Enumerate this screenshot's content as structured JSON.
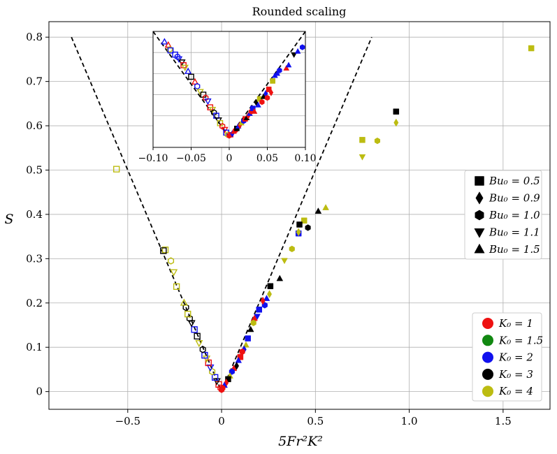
{
  "chart_data": {
    "type": "scatter",
    "title": "Rounded scaling",
    "xlabel": "5Fr²K²",
    "ylabel": "S",
    "xlim": [
      -0.92,
      1.75
    ],
    "ylim": [
      -0.04,
      0.835
    ],
    "xticks": [
      -0.5,
      0,
      0.5,
      1.0,
      1.5
    ],
    "xtick_labels": [
      "−0.5",
      "0",
      "0.5",
      "1.0",
      "1.5"
    ],
    "yticks": [
      0,
      0.1,
      0.2,
      0.3,
      0.4,
      0.5,
      0.6,
      0.7,
      0.8
    ],
    "ytick_labels": [
      "0",
      "0.1",
      "0.2",
      "0.3",
      "0.4",
      "0.5",
      "0.6",
      "0.7",
      "0.8"
    ],
    "grid": true,
    "reference_lines": [
      {
        "style": "dashed",
        "color": "#000000",
        "points": [
          [
            -0.8,
            0.8
          ],
          [
            0,
            0
          ],
          [
            0.8,
            0.8
          ]
        ]
      }
    ],
    "legend_bu": {
      "placement": "right",
      "entries": [
        {
          "label": "Bu₀ = 0.5",
          "marker": "square"
        },
        {
          "label": "Bu₀ = 0.9",
          "marker": "diamond"
        },
        {
          "label": "Bu₀ = 1.0",
          "marker": "hexagon"
        },
        {
          "label": "Bu₀ = 1.1",
          "marker": "triangle-down"
        },
        {
          "label": "Bu₀ = 1.5",
          "marker": "triangle-up"
        }
      ]
    },
    "legend_k": {
      "placement": "lower-right",
      "entries": [
        {
          "label": "K₀ = 1",
          "color": "#ee1111"
        },
        {
          "label": "K₀ = 1.5",
          "color": "#118811"
        },
        {
          "label": "K₀ = 2",
          "color": "#1111ee"
        },
        {
          "label": "K₀ = 3",
          "color": "#000000"
        },
        {
          "label": "K₀ = 4",
          "color": "#bcbc11"
        }
      ]
    },
    "inset": {
      "xlim": [
        -0.1,
        0.1
      ],
      "ylim": [
        -0.01,
        0.1
      ],
      "xticks": [
        -0.1,
        -0.05,
        0,
        0.05,
        0.1
      ],
      "xtick_labels": [
        "−0.10",
        "−0.05",
        "0",
        "0.05",
        "0.10"
      ],
      "grid": true
    },
    "points": [
      {
        "x": 1.65,
        "y": 0.775,
        "marker": "square",
        "k": 4,
        "filled": true
      },
      {
        "x": 0.93,
        "y": 0.632,
        "marker": "square",
        "k": 3,
        "filled": true
      },
      {
        "x": 0.93,
        "y": 0.607,
        "marker": "diamond",
        "k": 4,
        "filled": true
      },
      {
        "x": 0.83,
        "y": 0.566,
        "marker": "hexagon",
        "k": 4,
        "filled": true
      },
      {
        "x": 0.75,
        "y": 0.568,
        "marker": "square",
        "k": 4,
        "filled": true
      },
      {
        "x": 0.75,
        "y": 0.53,
        "marker": "triangle-down",
        "k": 4,
        "filled": true
      },
      {
        "x": 0.555,
        "y": 0.415,
        "marker": "triangle-up",
        "k": 4,
        "filled": true
      },
      {
        "x": 0.515,
        "y": 0.407,
        "marker": "triangle-up",
        "k": 3,
        "filled": true
      },
      {
        "x": 0.46,
        "y": 0.37,
        "marker": "hexagon",
        "k": 3,
        "filled": true
      },
      {
        "x": 0.44,
        "y": 0.386,
        "marker": "square",
        "k": 4,
        "filled": true
      },
      {
        "x": 0.415,
        "y": 0.377,
        "marker": "square",
        "k": 3,
        "filled": true
      },
      {
        "x": 0.41,
        "y": 0.357,
        "marker": "square",
        "k": 2,
        "filled": true
      },
      {
        "x": 0.41,
        "y": 0.36,
        "marker": "diamond",
        "k": 4,
        "filled": true
      },
      {
        "x": 0.375,
        "y": 0.322,
        "marker": "hexagon",
        "k": 4,
        "filled": true
      },
      {
        "x": 0.335,
        "y": 0.296,
        "marker": "triangle-down",
        "k": 4,
        "filled": true
      },
      {
        "x": 0.31,
        "y": 0.255,
        "marker": "triangle-up",
        "k": 3,
        "filled": true
      },
      {
        "x": 0.26,
        "y": 0.238,
        "marker": "square",
        "k": 3,
        "filled": true
      },
      {
        "x": 0.255,
        "y": 0.22,
        "marker": "diamond",
        "k": 4,
        "filled": true
      },
      {
        "x": 0.24,
        "y": 0.21,
        "marker": "triangle-up",
        "k": 2,
        "filled": true
      },
      {
        "x": 0.23,
        "y": 0.195,
        "marker": "hexagon",
        "k": 2,
        "filled": true
      },
      {
        "x": 0.22,
        "y": 0.205,
        "marker": "diamond",
        "k": 1,
        "filled": true
      },
      {
        "x": 0.2,
        "y": 0.185,
        "marker": "square",
        "k": 2,
        "filled": true
      },
      {
        "x": 0.19,
        "y": 0.17,
        "marker": "triangle-down",
        "k": 2,
        "filled": true
      },
      {
        "x": 0.175,
        "y": 0.165,
        "marker": "triangle-up",
        "k": 1,
        "filled": true
      },
      {
        "x": 0.17,
        "y": 0.155,
        "marker": "hexagon",
        "k": 4,
        "filled": true
      },
      {
        "x": 0.155,
        "y": 0.14,
        "marker": "triangle-up",
        "k": 3,
        "filled": true
      },
      {
        "x": 0.14,
        "y": 0.12,
        "marker": "square",
        "k": 2,
        "filled": true
      },
      {
        "x": 0.13,
        "y": 0.105,
        "marker": "triangle-up",
        "k": 4,
        "filled": true
      },
      {
        "x": 0.12,
        "y": 0.095,
        "marker": "diamond",
        "k": 2,
        "filled": true
      },
      {
        "x": 0.11,
        "y": 0.09,
        "marker": "hexagon",
        "k": 1,
        "filled": true
      },
      {
        "x": 0.1,
        "y": 0.078,
        "marker": "square",
        "k": 1,
        "filled": true
      },
      {
        "x": 0.09,
        "y": 0.07,
        "marker": "triangle-up",
        "k": 2,
        "filled": true
      },
      {
        "x": 0.08,
        "y": 0.058,
        "marker": "diamond",
        "k": 3,
        "filled": true
      },
      {
        "x": 0.065,
        "y": 0.052,
        "marker": "triangle-up",
        "k": 1,
        "filled": true
      },
      {
        "x": 0.055,
        "y": 0.045,
        "marker": "hexagon",
        "k": 2,
        "filled": true
      },
      {
        "x": 0.045,
        "y": 0.035,
        "marker": "triangle-up",
        "k": 4,
        "filled": true
      },
      {
        "x": 0.035,
        "y": 0.028,
        "marker": "square",
        "k": 3,
        "filled": true
      },
      {
        "x": 0.025,
        "y": 0.02,
        "marker": "diamond",
        "k": 1,
        "filled": true
      },
      {
        "x": 0.015,
        "y": 0.014,
        "marker": "triangle-up",
        "k": 2,
        "filled": true
      },
      {
        "x": 0.005,
        "y": 0.008,
        "marker": "hexagon",
        "k": 1,
        "filled": true
      },
      {
        "x": 0.0,
        "y": 0.004,
        "marker": "hexagon",
        "k": 1,
        "filled": true
      },
      {
        "x": -0.005,
        "y": 0.008,
        "marker": "hexagon",
        "k": 1,
        "filled": false
      },
      {
        "x": -0.015,
        "y": 0.016,
        "marker": "square",
        "k": 1,
        "filled": false
      },
      {
        "x": -0.025,
        "y": 0.024,
        "marker": "triangle-down",
        "k": 3,
        "filled": false
      },
      {
        "x": -0.035,
        "y": 0.032,
        "marker": "square",
        "k": 2,
        "filled": false
      },
      {
        "x": -0.05,
        "y": 0.045,
        "marker": "hexagon",
        "k": 4,
        "filled": false
      },
      {
        "x": -0.06,
        "y": 0.055,
        "marker": "triangle-down",
        "k": 2,
        "filled": false
      },
      {
        "x": -0.07,
        "y": 0.065,
        "marker": "square",
        "k": 1,
        "filled": false
      },
      {
        "x": -0.08,
        "y": 0.075,
        "marker": "triangle-down",
        "k": 4,
        "filled": false
      },
      {
        "x": -0.09,
        "y": 0.082,
        "marker": "square",
        "k": 2,
        "filled": false
      },
      {
        "x": -0.1,
        "y": 0.095,
        "marker": "hexagon",
        "k": 3,
        "filled": false
      },
      {
        "x": -0.12,
        "y": 0.11,
        "marker": "triangle-down",
        "k": 4,
        "filled": false
      },
      {
        "x": -0.13,
        "y": 0.125,
        "marker": "square",
        "k": 3,
        "filled": false
      },
      {
        "x": -0.145,
        "y": 0.14,
        "marker": "square",
        "k": 2,
        "filled": false
      },
      {
        "x": -0.16,
        "y": 0.155,
        "marker": "triangle-down",
        "k": 3,
        "filled": false
      },
      {
        "x": -0.17,
        "y": 0.165,
        "marker": "hexagon",
        "k": 3,
        "filled": false
      },
      {
        "x": -0.18,
        "y": 0.175,
        "marker": "square",
        "k": 4,
        "filled": false
      },
      {
        "x": -0.19,
        "y": 0.19,
        "marker": "hexagon",
        "k": 3,
        "filled": false
      },
      {
        "x": -0.2,
        "y": 0.2,
        "marker": "triangle-up",
        "k": 4,
        "filled": false
      },
      {
        "x": -0.24,
        "y": 0.237,
        "marker": "square",
        "k": 4,
        "filled": false
      },
      {
        "x": -0.255,
        "y": 0.27,
        "marker": "triangle-down",
        "k": 4,
        "filled": false
      },
      {
        "x": -0.27,
        "y": 0.295,
        "marker": "hexagon",
        "k": 4,
        "filled": false
      },
      {
        "x": -0.3,
        "y": 0.32,
        "marker": "square",
        "k": 4,
        "filled": false
      },
      {
        "x": -0.31,
        "y": 0.318,
        "marker": "square",
        "k": 3,
        "filled": false
      },
      {
        "x": -0.56,
        "y": 0.502,
        "marker": "square",
        "k": 4,
        "filled": false
      }
    ],
    "inset_points": [
      {
        "x": -0.085,
        "y": 0.09,
        "marker": "triangle-up",
        "k": 2,
        "filled": false
      },
      {
        "x": -0.08,
        "y": 0.087,
        "marker": "triangle-up",
        "k": 1,
        "filled": false
      },
      {
        "x": -0.078,
        "y": 0.083,
        "marker": "hexagon",
        "k": 4,
        "filled": false
      },
      {
        "x": -0.077,
        "y": 0.082,
        "marker": "square",
        "k": 2,
        "filled": false
      },
      {
        "x": -0.071,
        "y": 0.078,
        "marker": "square",
        "k": 2,
        "filled": false
      },
      {
        "x": -0.068,
        "y": 0.076,
        "marker": "hexagon",
        "k": 2,
        "filled": false
      },
      {
        "x": -0.066,
        "y": 0.074,
        "marker": "triangle-down",
        "k": 2,
        "filled": false
      },
      {
        "x": -0.062,
        "y": 0.071,
        "marker": "triangle-down",
        "k": 3,
        "filled": false
      },
      {
        "x": -0.06,
        "y": 0.068,
        "marker": "square",
        "k": 1,
        "filled": false
      },
      {
        "x": -0.058,
        "y": 0.066,
        "marker": "triangle-down",
        "k": 4,
        "filled": false
      },
      {
        "x": -0.054,
        "y": 0.062,
        "marker": "triangle-up",
        "k": 2,
        "filled": false
      },
      {
        "x": -0.05,
        "y": 0.057,
        "marker": "square",
        "k": 3,
        "filled": false
      },
      {
        "x": -0.045,
        "y": 0.052,
        "marker": "triangle-up",
        "k": 1,
        "filled": false
      },
      {
        "x": -0.042,
        "y": 0.048,
        "marker": "hexagon",
        "k": 2,
        "filled": false
      },
      {
        "x": -0.038,
        "y": 0.043,
        "marker": "triangle-down",
        "k": 4,
        "filled": false
      },
      {
        "x": -0.034,
        "y": 0.04,
        "marker": "square",
        "k": 3,
        "filled": false
      },
      {
        "x": -0.031,
        "y": 0.037,
        "marker": "hexagon",
        "k": 1,
        "filled": false
      },
      {
        "x": -0.028,
        "y": 0.034,
        "marker": "triangle-down",
        "k": 2,
        "filled": false
      },
      {
        "x": -0.025,
        "y": 0.028,
        "marker": "square",
        "k": 1,
        "filled": false
      },
      {
        "x": -0.022,
        "y": 0.026,
        "marker": "triangle-down",
        "k": 4,
        "filled": false
      },
      {
        "x": -0.02,
        "y": 0.023,
        "marker": "hexagon",
        "k": 3,
        "filled": false
      },
      {
        "x": -0.017,
        "y": 0.02,
        "marker": "square",
        "k": 2,
        "filled": false
      },
      {
        "x": -0.014,
        "y": 0.016,
        "marker": "triangle-down",
        "k": 3,
        "filled": false
      },
      {
        "x": -0.012,
        "y": 0.013,
        "marker": "square",
        "k": 4,
        "filled": false
      },
      {
        "x": -0.009,
        "y": 0.01,
        "marker": "hexagon",
        "k": 1,
        "filled": false
      },
      {
        "x": -0.006,
        "y": 0.007,
        "marker": "triangle-down",
        "k": 1,
        "filled": false
      },
      {
        "x": -0.004,
        "y": 0.004,
        "marker": "square",
        "k": 2,
        "filled": false
      },
      {
        "x": -0.002,
        "y": 0.002,
        "marker": "hexagon",
        "k": 4,
        "filled": false
      },
      {
        "x": 0.0,
        "y": 0.001,
        "marker": "hexagon",
        "k": 1,
        "filled": true
      },
      {
        "x": 0.002,
        "y": 0.002,
        "marker": "square",
        "k": 1,
        "filled": true
      },
      {
        "x": 0.004,
        "y": 0.003,
        "marker": "diamond",
        "k": 2,
        "filled": true
      },
      {
        "x": 0.006,
        "y": 0.005,
        "marker": "triangle-up",
        "k": 1,
        "filled": true
      },
      {
        "x": 0.008,
        "y": 0.006,
        "marker": "hexagon",
        "k": 1,
        "filled": true
      },
      {
        "x": 0.01,
        "y": 0.008,
        "marker": "square",
        "k": 3,
        "filled": true
      },
      {
        "x": 0.012,
        "y": 0.01,
        "marker": "triangle-up",
        "k": 2,
        "filled": true
      },
      {
        "x": 0.014,
        "y": 0.011,
        "marker": "diamond",
        "k": 1,
        "filled": true
      },
      {
        "x": 0.016,
        "y": 0.013,
        "marker": "triangle-up",
        "k": 4,
        "filled": true
      },
      {
        "x": 0.019,
        "y": 0.015,
        "marker": "hexagon",
        "k": 2,
        "filled": true
      },
      {
        "x": 0.021,
        "y": 0.017,
        "marker": "square",
        "k": 1,
        "filled": true
      },
      {
        "x": 0.023,
        "y": 0.018,
        "marker": "triangle-up",
        "k": 3,
        "filled": true
      },
      {
        "x": 0.025,
        "y": 0.02,
        "marker": "diamond",
        "k": 1,
        "filled": true
      },
      {
        "x": 0.027,
        "y": 0.022,
        "marker": "triangle-up",
        "k": 2,
        "filled": true
      },
      {
        "x": 0.029,
        "y": 0.024,
        "marker": "hexagon",
        "k": 1,
        "filled": true
      },
      {
        "x": 0.031,
        "y": 0.027,
        "marker": "square",
        "k": 2,
        "filled": true
      },
      {
        "x": 0.033,
        "y": 0.024,
        "marker": "triangle-up",
        "k": 1,
        "filled": true
      },
      {
        "x": 0.036,
        "y": 0.032,
        "marker": "diamond",
        "k": 3,
        "filled": true
      },
      {
        "x": 0.038,
        "y": 0.03,
        "marker": "triangle-up",
        "k": 2,
        "filled": true
      },
      {
        "x": 0.04,
        "y": 0.036,
        "marker": "square",
        "k": 4,
        "filled": true
      },
      {
        "x": 0.043,
        "y": 0.033,
        "marker": "hexagon",
        "k": 1,
        "filled": true
      },
      {
        "x": 0.045,
        "y": 0.038,
        "marker": "triangle-up",
        "k": 3,
        "filled": true
      },
      {
        "x": 0.048,
        "y": 0.041,
        "marker": "diamond",
        "k": 2,
        "filled": true
      },
      {
        "x": 0.05,
        "y": 0.037,
        "marker": "hexagon",
        "k": 1,
        "filled": true
      },
      {
        "x": 0.052,
        "y": 0.045,
        "marker": "square",
        "k": 1,
        "filled": true
      },
      {
        "x": 0.055,
        "y": 0.042,
        "marker": "diamond",
        "k": 1,
        "filled": true
      },
      {
        "x": 0.057,
        "y": 0.053,
        "marker": "square",
        "k": 4,
        "filled": true
      },
      {
        "x": 0.06,
        "y": 0.058,
        "marker": "triangle-up",
        "k": 2,
        "filled": true
      },
      {
        "x": 0.063,
        "y": 0.06,
        "marker": "triangle-up",
        "k": 2,
        "filled": true
      },
      {
        "x": 0.066,
        "y": 0.063,
        "marker": "hexagon",
        "k": 2,
        "filled": true
      },
      {
        "x": 0.075,
        "y": 0.065,
        "marker": "triangle-up",
        "k": 1,
        "filled": true
      },
      {
        "x": 0.078,
        "y": 0.068,
        "marker": "triangle-up",
        "k": 2,
        "filled": true
      },
      {
        "x": 0.085,
        "y": 0.078,
        "marker": "triangle-down",
        "k": 3,
        "filled": true
      },
      {
        "x": 0.09,
        "y": 0.081,
        "marker": "triangle-up",
        "k": 2,
        "filled": true
      },
      {
        "x": 0.096,
        "y": 0.085,
        "marker": "hexagon",
        "k": 2,
        "filled": true
      }
    ]
  }
}
